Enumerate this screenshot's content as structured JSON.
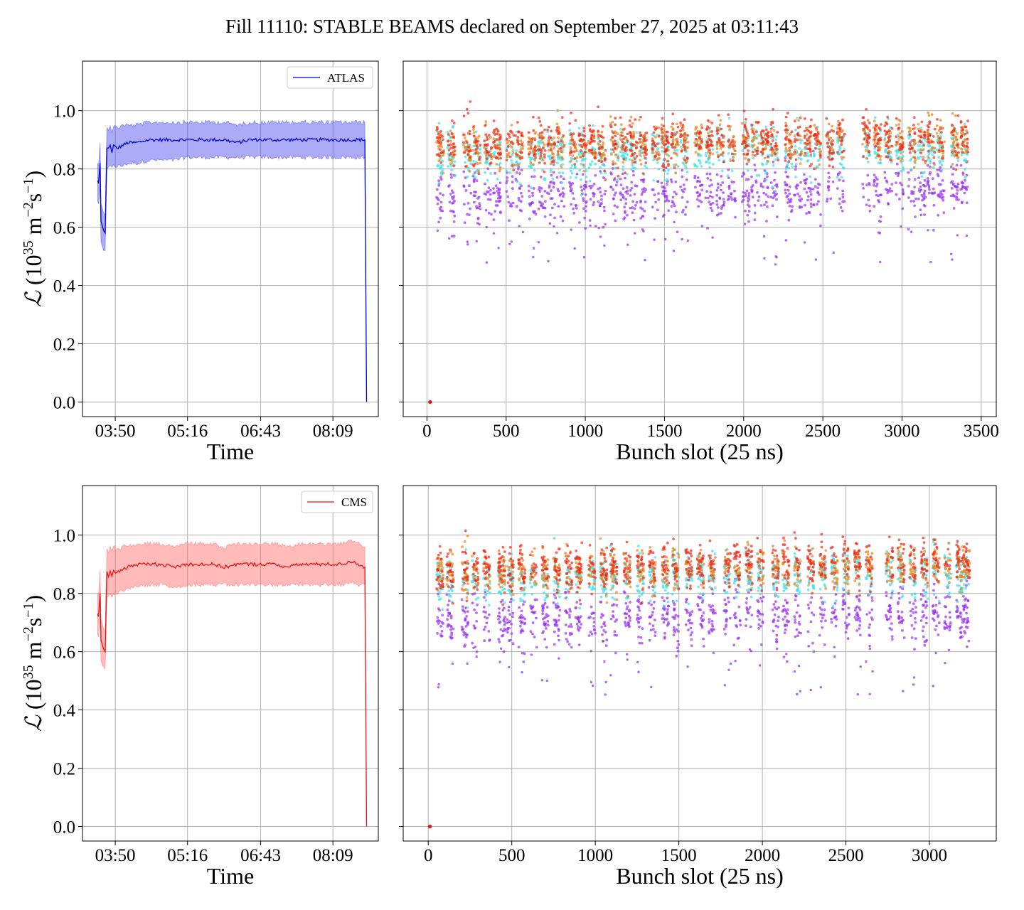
{
  "figure": {
    "title": "Fill 11110: STABLE BEAMS declared on September 27, 2025 at 03:11:43"
  },
  "chart_data": [
    {
      "id": "atlas_time",
      "type": "line",
      "xlabel": "Time",
      "ylabel": "L (10^35 m^-2 s^-1)",
      "xtick_labels": [
        "03:50",
        "05:16",
        "06:43",
        "08:09"
      ],
      "xlim": [
        "03:11",
        "09:03"
      ],
      "ylim": [
        -0.05,
        1.17
      ],
      "yticks": [
        0.0,
        0.2,
        0.4,
        0.6,
        0.8,
        1.0
      ],
      "grid": true,
      "legend": "upper right",
      "color": "#0000dd",
      "band_color": "#4444ee",
      "series": [
        {
          "name": "ATLAS",
          "x": [
            "03:29",
            "03:30",
            "03:32",
            "03:33",
            "03:35",
            "03:36",
            "03:38",
            "03:40",
            "03:42",
            "03:44",
            "03:46",
            "03:48",
            "03:52",
            "03:58",
            "04:05",
            "04:15",
            "04:30",
            "04:45",
            "05:00",
            "05:16",
            "05:30",
            "05:45",
            "06:00",
            "06:15",
            "06:30",
            "06:43",
            "07:00",
            "07:15",
            "07:30",
            "07:45",
            "08:00",
            "08:09",
            "08:20",
            "08:30",
            "08:40",
            "08:47",
            "08:49"
          ],
          "y": [
            0.76,
            0.75,
            0.82,
            0.62,
            0.6,
            0.59,
            0.58,
            0.87,
            0.87,
            0.88,
            0.86,
            0.88,
            0.87,
            0.88,
            0.89,
            0.89,
            0.9,
            0.9,
            0.9,
            0.9,
            0.9,
            0.9,
            0.9,
            0.89,
            0.9,
            0.9,
            0.9,
            0.9,
            0.9,
            0.9,
            0.9,
            0.9,
            0.9,
            0.9,
            0.9,
            0.9,
            0.0
          ],
          "band_lower": [
            0.69,
            0.68,
            0.74,
            0.55,
            0.53,
            0.52,
            0.52,
            0.8,
            0.8,
            0.81,
            0.8,
            0.81,
            0.81,
            0.81,
            0.82,
            0.82,
            0.83,
            0.83,
            0.83,
            0.84,
            0.84,
            0.84,
            0.84,
            0.84,
            0.84,
            0.84,
            0.84,
            0.84,
            0.84,
            0.84,
            0.84,
            0.84,
            0.84,
            0.84,
            0.84,
            0.84,
            0.0
          ],
          "band_upper": [
            0.82,
            0.81,
            0.89,
            0.68,
            0.66,
            0.65,
            0.64,
            0.94,
            0.94,
            0.95,
            0.93,
            0.95,
            0.94,
            0.95,
            0.95,
            0.95,
            0.96,
            0.96,
            0.96,
            0.96,
            0.96,
            0.96,
            0.96,
            0.95,
            0.96,
            0.96,
            0.96,
            0.96,
            0.96,
            0.96,
            0.96,
            0.96,
            0.96,
            0.96,
            0.96,
            0.96,
            0.0
          ]
        }
      ]
    },
    {
      "id": "atlas_bunch",
      "type": "scatter",
      "xlabel": "Bunch slot (25 ns)",
      "ylabel": "",
      "xticks": [
        0,
        500,
        1000,
        1500,
        2000,
        2500,
        3000,
        3500
      ],
      "xlim": [
        -150,
        3595
      ],
      "ylim": [
        -0.05,
        1.17
      ],
      "yticks": [
        0.0,
        0.2,
        0.4,
        0.6,
        0.8,
        1.0
      ],
      "grid": true,
      "x_range": [
        60,
        3430
      ],
      "trains": [
        60,
        130,
        230,
        290,
        360,
        420,
        500,
        560,
        640,
        700,
        760,
        820,
        900,
        960,
        1020,
        1080,
        1160,
        1220,
        1280,
        1340,
        1420,
        1480,
        1540,
        1600,
        1690,
        1760,
        1830,
        1900,
        1990,
        2050,
        2110,
        2170,
        2260,
        2320,
        2380,
        2440,
        2520,
        2590,
        2750,
        2820,
        2890,
        2960,
        3040,
        3100,
        3160,
        3220,
        3310,
        3370
      ],
      "train_length": 48,
      "groups": [
        {
          "color": "#ee2a1a",
          "mean": 0.88,
          "spread": 0.07
        },
        {
          "color": "#e8841f",
          "mean": 0.87,
          "spread": 0.06
        },
        {
          "color": "#40e0e8",
          "mean": 0.84,
          "spread": 0.07
        },
        {
          "color": "#9a30f0",
          "mean": 0.72,
          "spread": 0.08
        }
      ],
      "points_per_group": 900,
      "outlier_points": 60,
      "outlier_range": [
        0.47,
        0.62
      ],
      "zero_point": {
        "x": 20,
        "y": 0.0
      }
    },
    {
      "id": "cms_time",
      "type": "line",
      "xlabel": "Time",
      "ylabel": "L (10^35 m^-2 s^-1)",
      "xtick_labels": [
        "03:50",
        "05:16",
        "06:43",
        "08:09"
      ],
      "xlim": [
        "03:11",
        "09:03"
      ],
      "ylim": [
        -0.05,
        1.17
      ],
      "yticks": [
        0.0,
        0.2,
        0.4,
        0.6,
        0.8,
        1.0
      ],
      "grid": true,
      "legend": "upper right",
      "color": "#ee1111",
      "band_color": "#ff6666",
      "series": [
        {
          "name": "CMS",
          "x": [
            "03:29",
            "03:30",
            "03:32",
            "03:33",
            "03:35",
            "03:36",
            "03:38",
            "03:40",
            "03:42",
            "03:44",
            "03:46",
            "03:48",
            "03:52",
            "03:58",
            "04:05",
            "04:15",
            "04:30",
            "04:45",
            "05:00",
            "05:16",
            "05:30",
            "05:45",
            "06:00",
            "06:15",
            "06:30",
            "06:43",
            "07:00",
            "07:15",
            "07:30",
            "07:45",
            "08:00",
            "08:09",
            "08:20",
            "08:30",
            "08:40",
            "08:47",
            "08:49"
          ],
          "y": [
            0.73,
            0.72,
            0.8,
            0.64,
            0.62,
            0.61,
            0.6,
            0.87,
            0.86,
            0.88,
            0.86,
            0.88,
            0.87,
            0.88,
            0.89,
            0.9,
            0.9,
            0.9,
            0.89,
            0.9,
            0.9,
            0.9,
            0.89,
            0.9,
            0.9,
            0.9,
            0.9,
            0.89,
            0.9,
            0.9,
            0.9,
            0.9,
            0.9,
            0.91,
            0.9,
            0.89,
            0.0
          ],
          "band_lower": [
            0.66,
            0.65,
            0.72,
            0.57,
            0.55,
            0.55,
            0.54,
            0.79,
            0.79,
            0.8,
            0.79,
            0.8,
            0.8,
            0.81,
            0.82,
            0.82,
            0.83,
            0.83,
            0.82,
            0.83,
            0.83,
            0.83,
            0.83,
            0.83,
            0.83,
            0.83,
            0.83,
            0.83,
            0.83,
            0.83,
            0.83,
            0.83,
            0.83,
            0.84,
            0.83,
            0.83,
            0.0
          ],
          "band_upper": [
            0.8,
            0.79,
            0.88,
            0.71,
            0.69,
            0.68,
            0.67,
            0.95,
            0.94,
            0.96,
            0.94,
            0.96,
            0.95,
            0.96,
            0.96,
            0.97,
            0.97,
            0.97,
            0.96,
            0.97,
            0.97,
            0.97,
            0.96,
            0.97,
            0.97,
            0.97,
            0.97,
            0.96,
            0.97,
            0.97,
            0.97,
            0.97,
            0.97,
            0.98,
            0.97,
            0.96,
            0.0
          ]
        }
      ]
    },
    {
      "id": "cms_bunch",
      "type": "scatter",
      "xlabel": "Bunch slot (25 ns)",
      "ylabel": "",
      "xticks": [
        0,
        500,
        1000,
        1500,
        2000,
        2500,
        3000
      ],
      "xlim": [
        -150,
        3400
      ],
      "ylim": [
        -0.05,
        1.17
      ],
      "yticks": [
        0.0,
        0.2,
        0.4,
        0.6,
        0.8,
        1.0
      ],
      "grid": true,
      "x_range": [
        50,
        3240
      ],
      "trains": [
        50,
        110,
        200,
        260,
        330,
        420,
        470,
        540,
        610,
        680,
        750,
        820,
        880,
        960,
        1030,
        1090,
        1170,
        1250,
        1320,
        1400,
        1460,
        1540,
        1610,
        1680,
        1770,
        1830,
        1900,
        1970,
        2060,
        2120,
        2190,
        2270,
        2340,
        2410,
        2480,
        2550,
        2620,
        2740,
        2810,
        2880,
        2950,
        3020,
        3090,
        3160,
        3200
      ],
      "train_length": 40,
      "groups": [
        {
          "color": "#ee2a1a",
          "mean": 0.88,
          "spread": 0.07
        },
        {
          "color": "#e8841f",
          "mean": 0.87,
          "spread": 0.06
        },
        {
          "color": "#40e0e8",
          "mean": 0.84,
          "spread": 0.07
        },
        {
          "color": "#9a30f0",
          "mean": 0.72,
          "spread": 0.08
        }
      ],
      "points_per_group": 900,
      "outlier_points": 60,
      "outlier_range": [
        0.45,
        0.62
      ],
      "zero_point": {
        "x": 10,
        "y": 0.0
      }
    }
  ]
}
